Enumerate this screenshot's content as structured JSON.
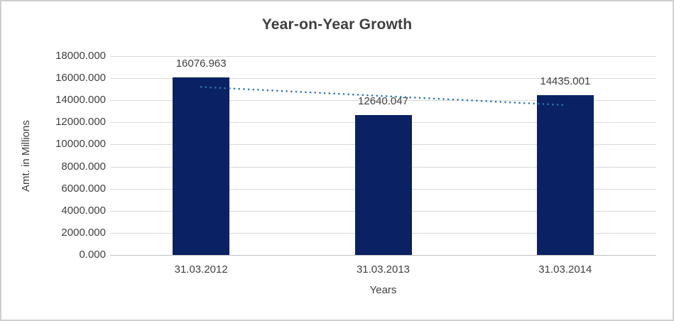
{
  "window": {
    "background": "#ffffff",
    "border_color": "#cfcfcf"
  },
  "chart_data": {
    "type": "bar",
    "title": "Year-on-Year Growth",
    "xlabel": "Years",
    "ylabel": "Amt. in Millions",
    "categories": [
      "31.03.2012",
      "31.03.2013",
      "31.03.2014"
    ],
    "values": [
      16076.963,
      12640.047,
      14435.001
    ],
    "data_labels": [
      "16076.963",
      "12640.047",
      "14435.001"
    ],
    "ylim": [
      0,
      18000
    ],
    "ytick_values": [
      0,
      2000,
      4000,
      6000,
      8000,
      10000,
      12000,
      14000,
      16000,
      18000
    ],
    "ytick_labels": [
      "0.000",
      "2000.000",
      "4000.000",
      "6000.000",
      "8000.000",
      "10000.000",
      "12000.000",
      "14000.000",
      "16000.000",
      "18000.000"
    ],
    "grid": true,
    "legend": "none",
    "trendline": {
      "type": "linear",
      "style": "dotted",
      "start_value": 15205,
      "end_value": 13563
    },
    "colors": {
      "bar": "#0a2263",
      "trendline": "#2e75b6",
      "gridline": "#d9d9d9",
      "axis_line": "#bfbfbf",
      "tick_text": "#404040",
      "title_text": "#3f3f3f",
      "label_text": "#3f3f3f"
    }
  }
}
